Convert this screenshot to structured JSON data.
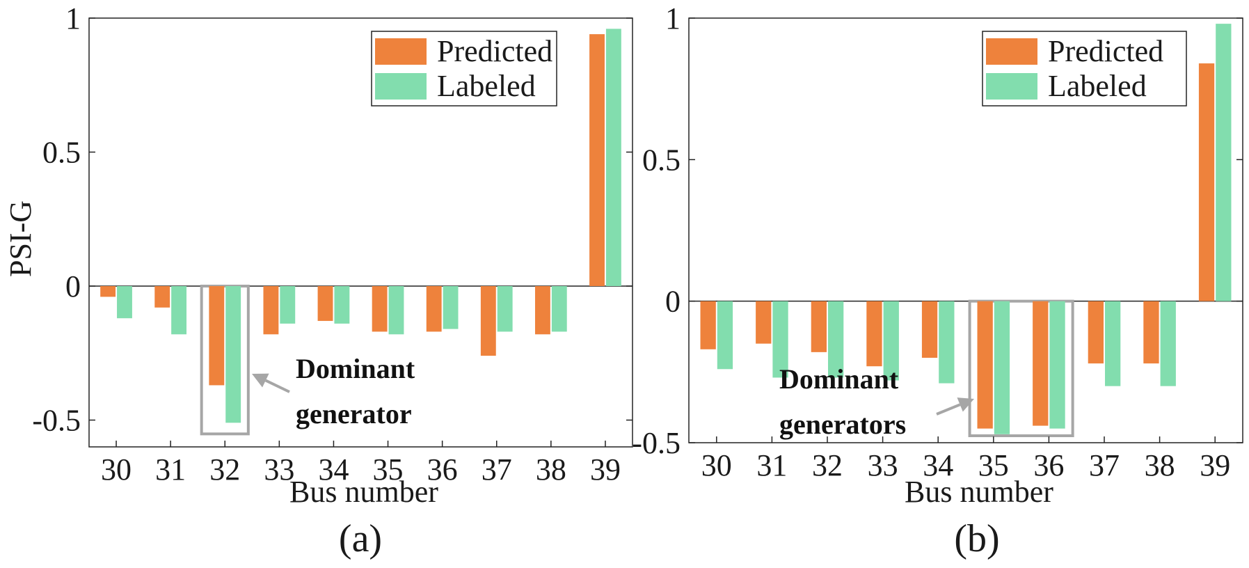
{
  "colors": {
    "predicted": "#EE823C",
    "labeled": "#82DDAE",
    "box": "#A6A6A6",
    "axis": "#222222"
  },
  "chart_data": [
    {
      "type": "bar",
      "panel_label": "(a)",
      "xlabel": "Bus number",
      "ylabel": "PSI-G",
      "ylim": [
        -0.6,
        1.0
      ],
      "yticks": [
        -0.5,
        0,
        0.5,
        1
      ],
      "ytick_labels": [
        "-0.5",
        "0",
        "0.5",
        "1"
      ],
      "categories": [
        "30",
        "31",
        "32",
        "33",
        "34",
        "35",
        "36",
        "37",
        "38",
        "39"
      ],
      "series": [
        {
          "name": "Predicted",
          "values": [
            -0.04,
            -0.08,
            -0.37,
            -0.18,
            -0.13,
            -0.17,
            -0.17,
            -0.26,
            -0.18,
            0.94
          ]
        },
        {
          "name": "Labeled",
          "values": [
            -0.12,
            -0.18,
            -0.51,
            -0.14,
            -0.14,
            -0.18,
            -0.16,
            -0.17,
            -0.17,
            0.96
          ]
        }
      ],
      "legend": "top-right",
      "annotation": {
        "lines": [
          "Dominant",
          "generator"
        ],
        "highlight": [
          "32"
        ]
      }
    },
    {
      "type": "bar",
      "panel_label": "(b)",
      "xlabel": "Bus number",
      "ylabel": "",
      "ylim": [
        -0.5,
        1.0
      ],
      "yticks": [
        -0.5,
        0,
        0.5,
        1
      ],
      "ytick_labels": [
        "-0.5",
        "0",
        "0.5",
        "1"
      ],
      "categories": [
        "30",
        "31",
        "32",
        "33",
        "34",
        "35",
        "36",
        "37",
        "38",
        "39"
      ],
      "series": [
        {
          "name": "Predicted",
          "values": [
            -0.17,
            -0.15,
            -0.18,
            -0.23,
            -0.2,
            -0.45,
            -0.44,
            -0.22,
            -0.22,
            0.84
          ]
        },
        {
          "name": "Labeled",
          "values": [
            -0.24,
            -0.27,
            -0.27,
            -0.28,
            -0.29,
            -0.47,
            -0.45,
            -0.3,
            -0.3,
            0.98
          ]
        }
      ],
      "legend": "top-right",
      "annotation": {
        "lines": [
          "Dominant",
          "generators"
        ],
        "highlight": [
          "35",
          "36"
        ]
      }
    }
  ]
}
